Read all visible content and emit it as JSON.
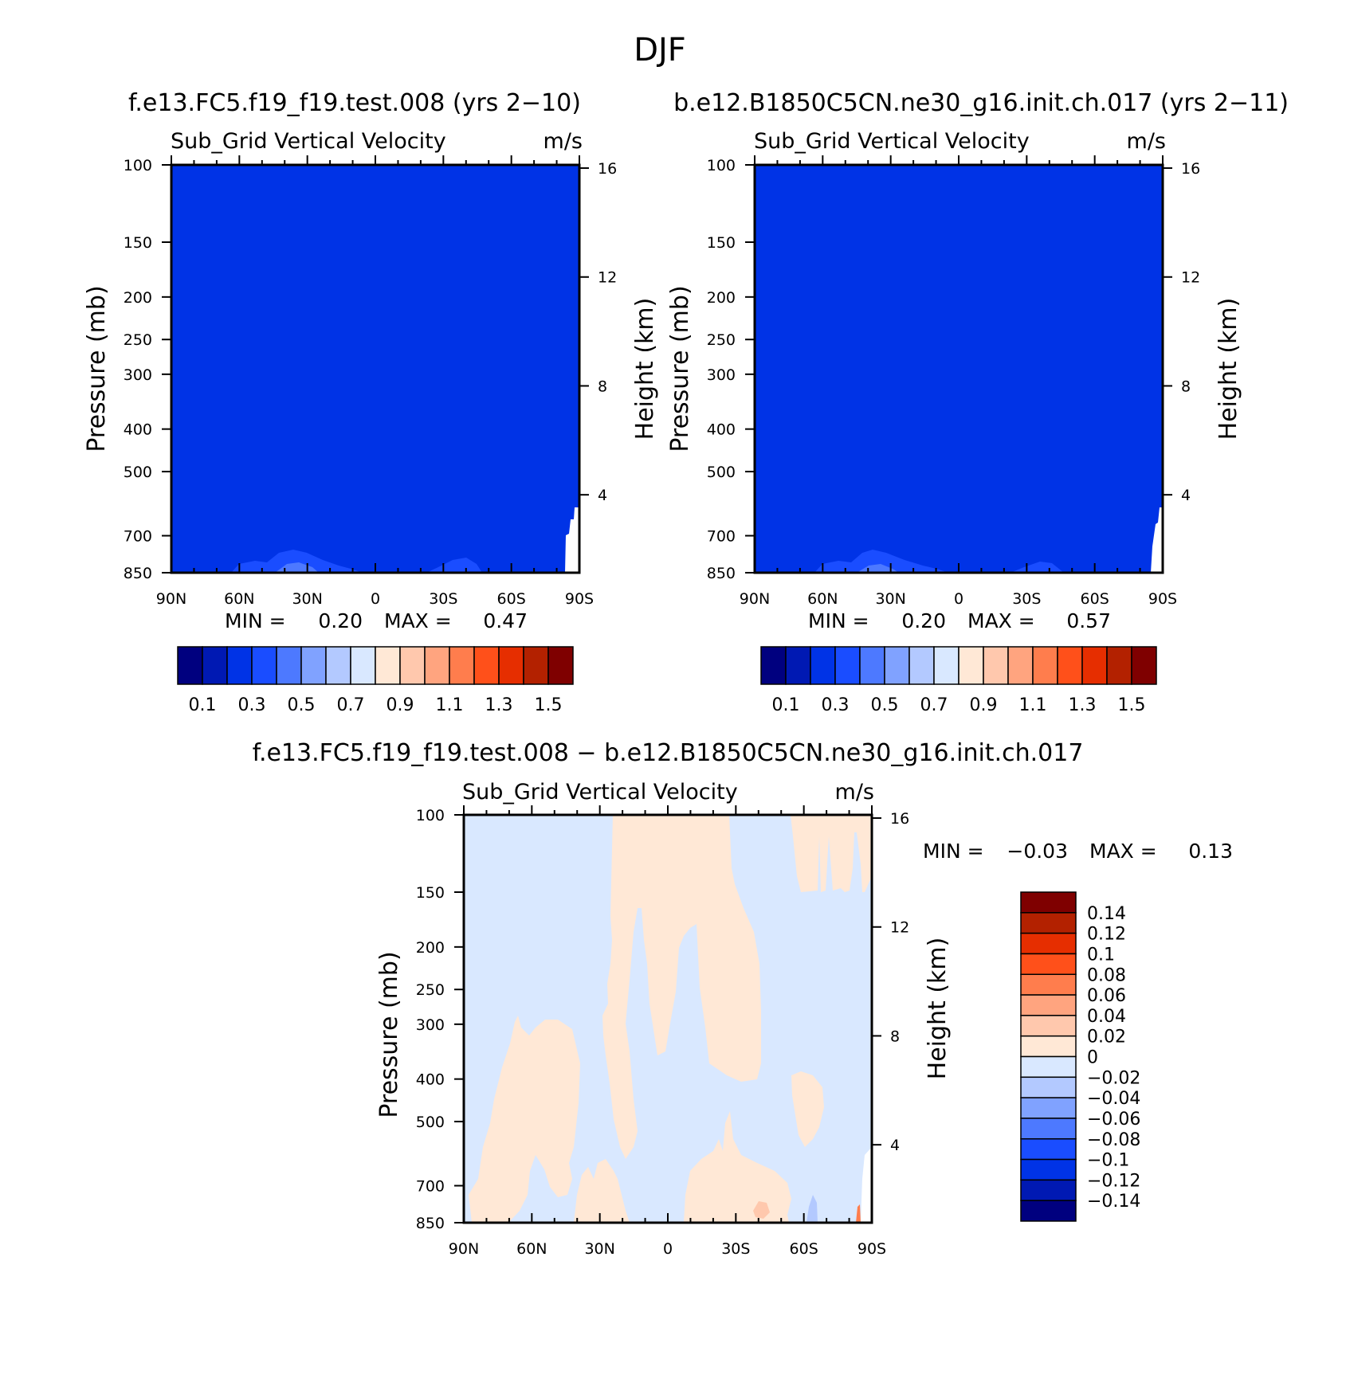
{
  "figure": {
    "title": "DJF"
  },
  "colors": {
    "abs_fill": [
      "#00007f",
      "#0019b3",
      "#0033e6",
      "#1a4dff",
      "#4d79ff",
      "#80a2ff",
      "#b3c9ff",
      "#d9e8ff",
      "#ffe8d6",
      "#ffc8ad",
      "#ffa47f",
      "#ff7d4d",
      "#ff501a",
      "#e62e00",
      "#b32100",
      "#7f0000"
    ],
    "diff_fill": [
      "#00007f",
      "#0019b3",
      "#0033e6",
      "#1a4dff",
      "#4d79ff",
      "#80a2ff",
      "#b3c9ff",
      "#d9e8ff",
      "#ffe8d6",
      "#ffc8ad",
      "#ffa47f",
      "#ff7d4d",
      "#ff501a",
      "#e62e00",
      "#b32100",
      "#7f0000"
    ]
  },
  "chart_data": [
    {
      "type": "heatmap",
      "id": "panel_a",
      "header": "f.e13.FC5.f19_f19.test.008 (yrs 2−10)",
      "variable": "Sub_Grid Vertical Velocity",
      "units": "m/s",
      "ylabel": "Pressure (mb)",
      "y2label": "Height (km)",
      "x_ticks": [
        "90N",
        "60N",
        "30N",
        "0",
        "30S",
        "60S",
        "90S"
      ],
      "y_ticks": [
        "100",
        "150",
        "200",
        "250",
        "300",
        "400",
        "500",
        "700",
        "850"
      ],
      "y2_ticks": [
        "16",
        "12",
        "8",
        "4"
      ],
      "ylim": [
        850,
        100
      ],
      "min_label": "MIN =",
      "min_value": "0.20",
      "max_label": "MAX =",
      "max_value": "0.47",
      "colorbar_labels": [
        "0.1",
        "0.3",
        "0.5",
        "0.7",
        "0.9",
        "1.1",
        "1.3",
        "1.5"
      ],
      "dominant_level": "0.2–0.3"
    },
    {
      "type": "heatmap",
      "id": "panel_b",
      "header": "b.e12.B1850C5CN.ne30_g16.init.ch.017 (yrs 2−11)",
      "variable": "Sub_Grid Vertical Velocity",
      "units": "m/s",
      "ylabel": "Pressure (mb)",
      "y2label": "Height (km)",
      "x_ticks": [
        "90N",
        "60N",
        "30N",
        "0",
        "30S",
        "60S",
        "90S"
      ],
      "y_ticks": [
        "100",
        "150",
        "200",
        "250",
        "300",
        "400",
        "500",
        "700",
        "850"
      ],
      "y2_ticks": [
        "16",
        "12",
        "8",
        "4"
      ],
      "ylim": [
        850,
        100
      ],
      "min_label": "MIN =",
      "min_value": "0.20",
      "max_label": "MAX =",
      "max_value": "0.57",
      "colorbar_labels": [
        "0.1",
        "0.3",
        "0.5",
        "0.7",
        "0.9",
        "1.1",
        "1.3",
        "1.5"
      ],
      "dominant_level": "0.2–0.3"
    },
    {
      "type": "heatmap",
      "id": "panel_diff",
      "header": "f.e13.FC5.f19_f19.test.008 − b.e12.B1850C5CN.ne30_g16.init.ch.017",
      "variable": "Sub_Grid Vertical Velocity",
      "units": "m/s",
      "ylabel": "Pressure (mb)",
      "y2label": "Height (km)",
      "x_ticks": [
        "90N",
        "60N",
        "30N",
        "0",
        "30S",
        "60S",
        "90S"
      ],
      "y_ticks": [
        "100",
        "150",
        "200",
        "250",
        "300",
        "400",
        "500",
        "700",
        "850"
      ],
      "y2_ticks": [
        "16",
        "12",
        "8",
        "4"
      ],
      "ylim": [
        850,
        100
      ],
      "min_label": "MIN =",
      "min_value": "−0.03",
      "max_label": "MAX =",
      "max_value": "0.13",
      "colorbar_labels": [
        "0.14",
        "0.12",
        "0.1",
        "0.08",
        "0.06",
        "0.04",
        "0.02",
        "0",
        "−0.02",
        "−0.04",
        "−0.06",
        "−0.08",
        "−0.1",
        "−0.12",
        "−0.14"
      ],
      "dominant_levels": [
        "−0.02–0",
        "0–0.02"
      ]
    }
  ]
}
